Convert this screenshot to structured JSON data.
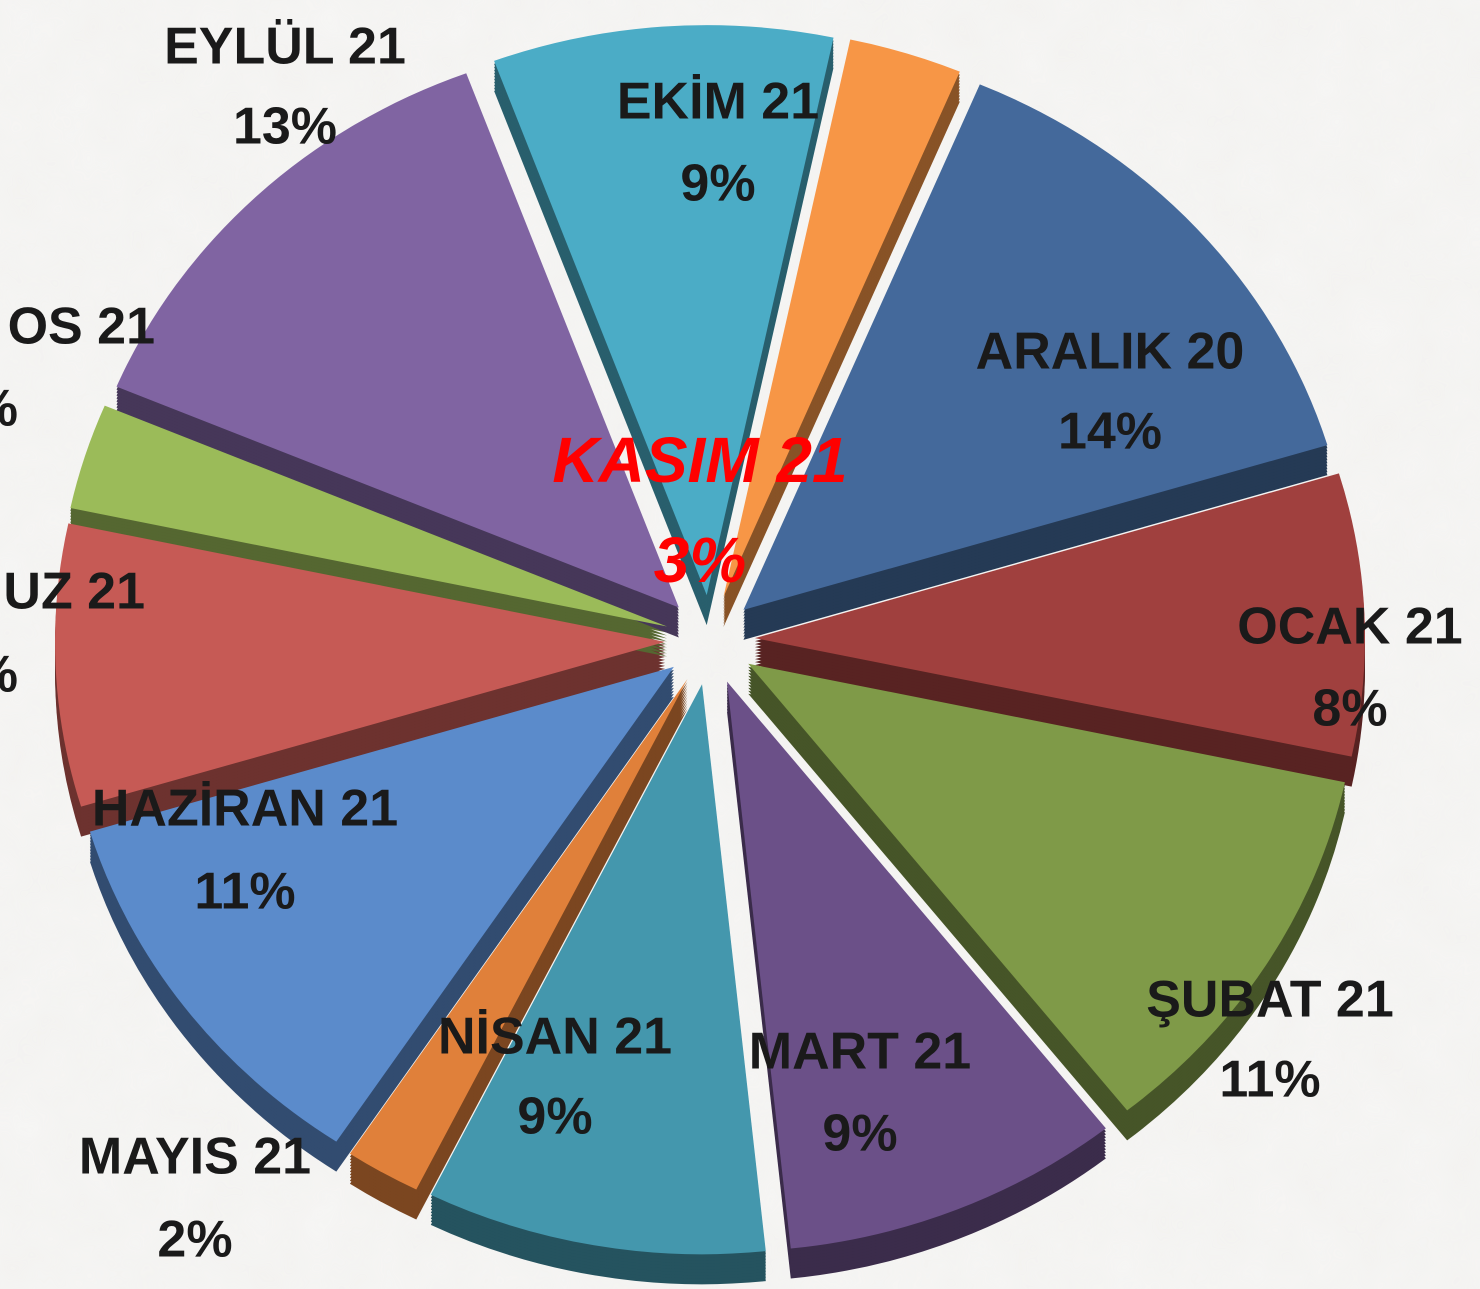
{
  "chart_data": {
    "type": "pie",
    "categories": [
      "KASIM 21",
      "ARALIK 20",
      "OCAK 21",
      "ŞUBAT 21",
      "MART 21",
      "NİSAN 21",
      "MAYIS 21",
      "HAZİRAN 21",
      "UZ 21",
      "OS 21",
      "EYLÜL 21",
      "EKİM 21"
    ],
    "values": [
      3,
      14,
      8,
      11,
      9,
      9,
      2,
      11,
      8,
      3,
      13,
      9
    ],
    "value_labels": [
      "3%",
      "14%",
      "8%",
      "11%",
      "9%",
      "9%",
      "2%",
      "11%",
      "%",
      "%",
      "13%",
      "9%"
    ],
    "colors": [
      "#f79646",
      "#44699b",
      "#a0403e",
      "#7f9a48",
      "#6b5088",
      "#4497ad",
      "#e0803a",
      "#5b8bcb",
      "#c65a55",
      "#9bbb59",
      "#8064a2",
      "#4bacc6"
    ]
  }
}
